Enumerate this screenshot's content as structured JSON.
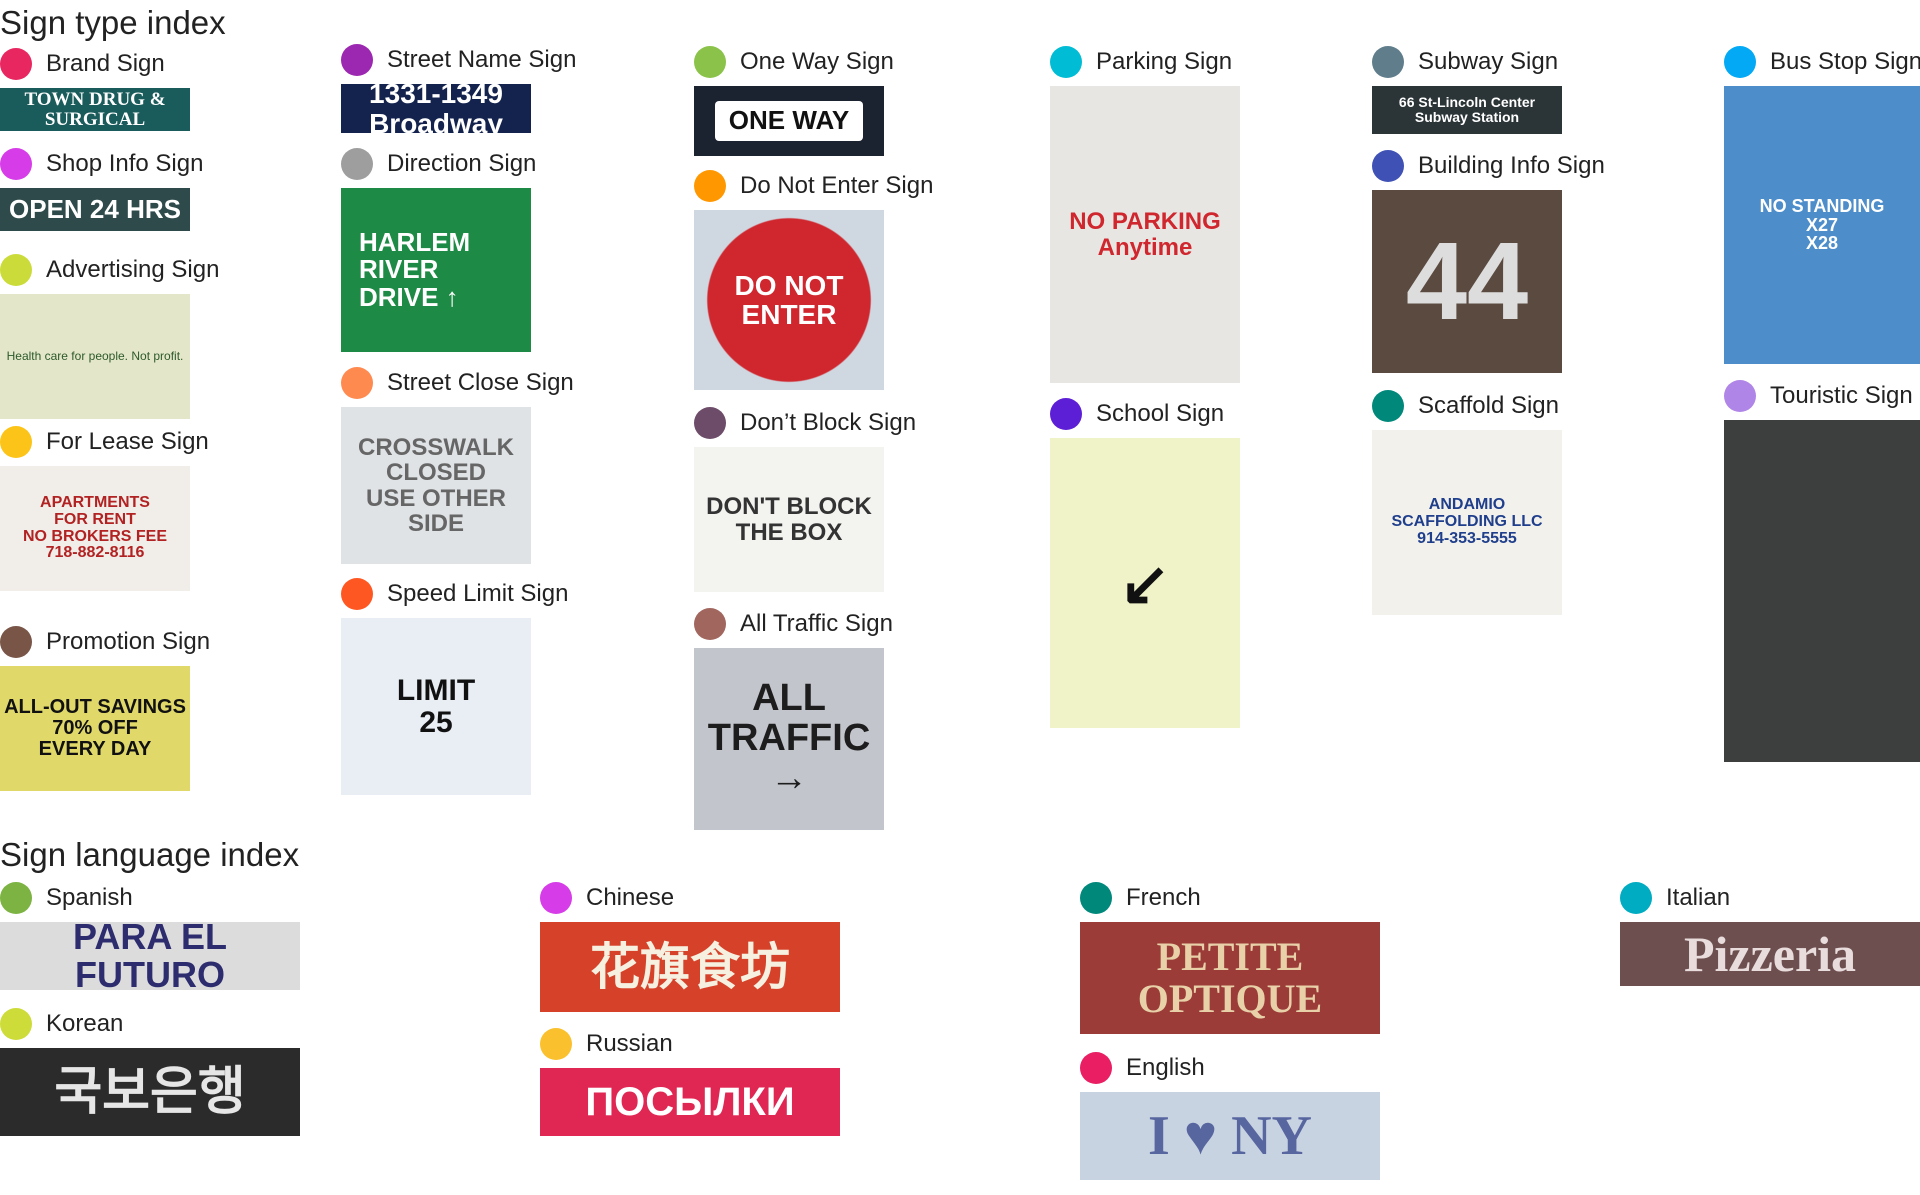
{
  "type_index": {
    "title": "Sign type index",
    "items": [
      {
        "label": "Brand Sign",
        "color": "#e8265f",
        "thumb": [
          "TOWN DRUG & SURGICAL"
        ]
      },
      {
        "label": "Shop Info Sign",
        "color": "#d63ce8",
        "thumb": [
          "OPEN 24 HRS"
        ]
      },
      {
        "label": "Advertising Sign",
        "color": "#cbdc3a",
        "thumb": [
          "Health care for people. Not profit."
        ]
      },
      {
        "label": "For Lease Sign",
        "color": "#fcc419",
        "thumb": [
          "APARTMENTS",
          "FOR RENT",
          "NO BROKERS FEE",
          "718-882-8116"
        ]
      },
      {
        "label": "Promotion Sign",
        "color": "#795548",
        "thumb": [
          "ALL-OUT SAVINGS",
          "70% OFF",
          "EVERY DAY"
        ]
      },
      {
        "label": "Street Name Sign",
        "color": "#9c27b0",
        "thumb": [
          "1331-1349",
          "Broadway"
        ]
      },
      {
        "label": "Direction Sign",
        "color": "#9e9e9e",
        "thumb": [
          "HARLEM",
          "RIVER",
          "DRIVE ↑"
        ]
      },
      {
        "label": "Street Close Sign",
        "color": "#ff8a50",
        "thumb": [
          "CROSSWALK",
          "CLOSED",
          "USE OTHER SIDE"
        ]
      },
      {
        "label": "Speed Limit Sign",
        "color": "#ff5722",
        "thumb": [
          "LIMIT",
          "25"
        ]
      },
      {
        "label": "One Way Sign",
        "color": "#8bc34a",
        "thumb": [
          "ONE WAY"
        ]
      },
      {
        "label": "Do Not Enter Sign",
        "color": "#ff9800",
        "thumb": [
          "DO NOT",
          "ENTER"
        ]
      },
      {
        "label": "Don’t Block Sign",
        "color": "#6d4c69",
        "thumb": [
          "DON'T BLOCK",
          "THE BOX"
        ]
      },
      {
        "label": "All Traffic Sign",
        "color": "#a1665e",
        "thumb": [
          "ALL",
          "TRAFFIC",
          "→"
        ]
      },
      {
        "label": "Parking Sign",
        "color": "#00bcd4",
        "thumb": [
          "NO PARKING",
          "Anytime"
        ]
      },
      {
        "label": "School Sign",
        "color": "#5c1fd6",
        "thumb": [
          "↙"
        ]
      },
      {
        "label": "Subway Sign",
        "color": "#607d8b",
        "thumb": [
          "66 St-Lincoln Center",
          "Subway Station"
        ]
      },
      {
        "label": "Building Info Sign",
        "color": "#3f51b5",
        "thumb": [
          "44"
        ]
      },
      {
        "label": "Scaffold Sign",
        "color": "#00897b",
        "thumb": [
          "ANDAMIO",
          "SCAFFOLDING LLC",
          "914-353-5555"
        ]
      },
      {
        "label": "Bus Stop Sign",
        "color": "#03a9f4",
        "thumb": [
          "NO STANDING",
          "X27",
          "X28"
        ]
      },
      {
        "label": "Touristic Sign",
        "color": "#b085e8",
        "thumb": [
          ""
        ]
      }
    ]
  },
  "language_index": {
    "title": "Sign language index",
    "items": [
      {
        "label": "Spanish",
        "color": "#7cb342",
        "thumb": [
          "PARA EL FUTURO"
        ]
      },
      {
        "label": "Korean",
        "color": "#cddc39",
        "thumb": [
          "국보은행"
        ]
      },
      {
        "label": "Chinese",
        "color": "#d63ce8",
        "thumb": [
          "花旗食坊"
        ]
      },
      {
        "label": "Russian",
        "color": "#fbc02d",
        "thumb": [
          "ПОСЫЛКИ"
        ]
      },
      {
        "label": "French",
        "color": "#00897b",
        "thumb": [
          "PETITE",
          "OPTIQUE"
        ]
      },
      {
        "label": "English",
        "color": "#e91e63",
        "thumb": [
          "I ♥ NY"
        ]
      },
      {
        "label": "Italian",
        "color": "#00acc1",
        "thumb": [
          "Pizzeria"
        ]
      }
    ]
  }
}
